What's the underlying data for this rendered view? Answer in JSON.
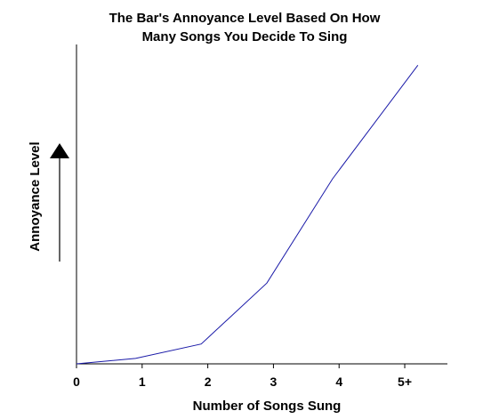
{
  "chart_data": {
    "type": "line",
    "title_lines": [
      "The Bar's Annoyance Level Based On How",
      "Many Songs You Decide To Sing"
    ],
    "xlabel": "Number of Songs Sung",
    "ylabel": "Annoyance Level",
    "x_tick_labels": [
      "0",
      "1",
      "2",
      "3",
      "4",
      "5+"
    ],
    "x_ticks": [
      0,
      1,
      2,
      3,
      4,
      5
    ],
    "xlim": [
      0,
      5.65
    ],
    "ylim": [
      0,
      100
    ],
    "y_ticks_shown": false,
    "grid": false,
    "legend": "none",
    "series": [
      {
        "x": [
          0,
          0.9,
          1.9,
          2.9,
          3.9,
          5.2
        ],
        "values": [
          0,
          1.7,
          6.2,
          25.3,
          57.9,
          93.5
        ],
        "color": "#1a1aa8"
      }
    ],
    "annotation_arrow": {
      "direction": "up",
      "color": "#000000"
    }
  }
}
